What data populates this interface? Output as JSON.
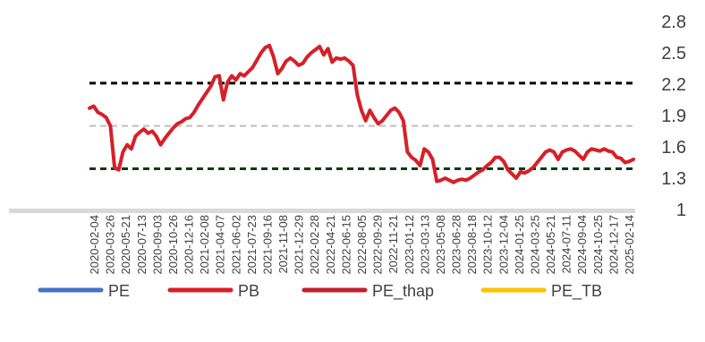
{
  "chart_data": {
    "type": "line",
    "y_axis": {
      "ylim": [
        1.0,
        2.8
      ],
      "ticks": [
        1,
        1.3,
        1.6,
        1.9,
        2.2,
        2.5,
        2.8
      ],
      "position": "right",
      "grid": false
    },
    "x_ticks": [
      "2020-02-04",
      "2020-03-26",
      "2020-05-21",
      "2020-07-13",
      "2020-09-03",
      "2020-10-26",
      "2020-12-16",
      "2021-02-08",
      "2021-04-07",
      "2021-06-02",
      "2021-07-23",
      "2021-09-16",
      "2021-11-08",
      "2021-12-29",
      "2022-02-28",
      "2022-04-21",
      "2022-06-15",
      "2022-08-05",
      "2022-09-29",
      "2022-11-21",
      "2023-01-12",
      "2023-03-13",
      "2023-05-08",
      "2023-06-28",
      "2023-08-18",
      "2023-10-12",
      "2023-12-04",
      "2024-01-25",
      "2024-03-25",
      "2024-05-21",
      "2024-07-11",
      "2024-09-04",
      "2024-10-25",
      "2024-12-17",
      "2025-02-14"
    ],
    "reference_lines": [
      {
        "y": 2.21,
        "color": "#000000",
        "style": "dashed"
      },
      {
        "y": 1.8,
        "color": "#bfbfbf",
        "style": "dashed"
      },
      {
        "y": 1.39,
        "color": "#0b3d0b",
        "style": "dashed"
      }
    ],
    "series": [
      {
        "name": "PE",
        "color": "#4472c4",
        "values": []
      },
      {
        "name": "PB",
        "color": "#d62028",
        "values": [
          1.97,
          1.99,
          1.93,
          1.91,
          1.88,
          1.8,
          1.4,
          1.38,
          1.55,
          1.62,
          1.58,
          1.7,
          1.74,
          1.77,
          1.73,
          1.75,
          1.7,
          1.62,
          1.68,
          1.73,
          1.78,
          1.82,
          1.84,
          1.87,
          1.88,
          1.93,
          2.0,
          2.06,
          2.12,
          2.18,
          2.27,
          2.28,
          2.05,
          2.22,
          2.28,
          2.24,
          2.3,
          2.28,
          2.32,
          2.36,
          2.43,
          2.5,
          2.55,
          2.57,
          2.46,
          2.3,
          2.35,
          2.42,
          2.45,
          2.42,
          2.38,
          2.4,
          2.46,
          2.5,
          2.53,
          2.56,
          2.48,
          2.54,
          2.41,
          2.45,
          2.44,
          2.45,
          2.42,
          2.38,
          2.1,
          1.95,
          1.85,
          1.95,
          1.88,
          1.82,
          1.85,
          1.9,
          1.95,
          1.97,
          1.93,
          1.85,
          1.55,
          1.5,
          1.47,
          1.42,
          1.58,
          1.55,
          1.48,
          1.27,
          1.28,
          1.3,
          1.28,
          1.26,
          1.28,
          1.29,
          1.28,
          1.3,
          1.33,
          1.36,
          1.38,
          1.42,
          1.45,
          1.5,
          1.5,
          1.46,
          1.38,
          1.34,
          1.3,
          1.36,
          1.35,
          1.37,
          1.4,
          1.45,
          1.5,
          1.55,
          1.57,
          1.55,
          1.48,
          1.55,
          1.57,
          1.58,
          1.56,
          1.52,
          1.48,
          1.55,
          1.58,
          1.57,
          1.56,
          1.58,
          1.56,
          1.55,
          1.5,
          1.49,
          1.45,
          1.46,
          1.48
        ]
      },
      {
        "name": "PE_thap",
        "color": "#c0202a",
        "values": []
      },
      {
        "name": "PE_TB",
        "color": "#ffc000",
        "values": []
      }
    ],
    "legend": {
      "placement": "bottom"
    }
  }
}
